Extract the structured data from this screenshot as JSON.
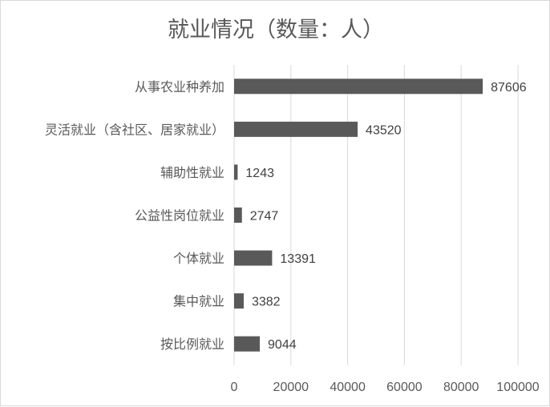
{
  "chart_data": {
    "type": "bar",
    "orientation": "horizontal",
    "title": "就业情况（数量：人）",
    "categories": [
      "从事农业种养加",
      "灵活就业（含社区、居家就业）",
      "辅助性就业",
      "公益性岗位就业",
      "个体就业",
      "集中就业",
      "按比例就业"
    ],
    "values": [
      87606,
      43520,
      1243,
      2747,
      13391,
      3382,
      9044
    ],
    "xlim": [
      0,
      100000
    ],
    "xticks": [
      "0",
      "20000",
      "40000",
      "60000",
      "80000",
      "100000"
    ],
    "xlabel": "",
    "ylabel": "",
    "grid": "vertical",
    "legend": "none",
    "bar_color": "#595959",
    "grid_color": "#d9d9d9"
  }
}
